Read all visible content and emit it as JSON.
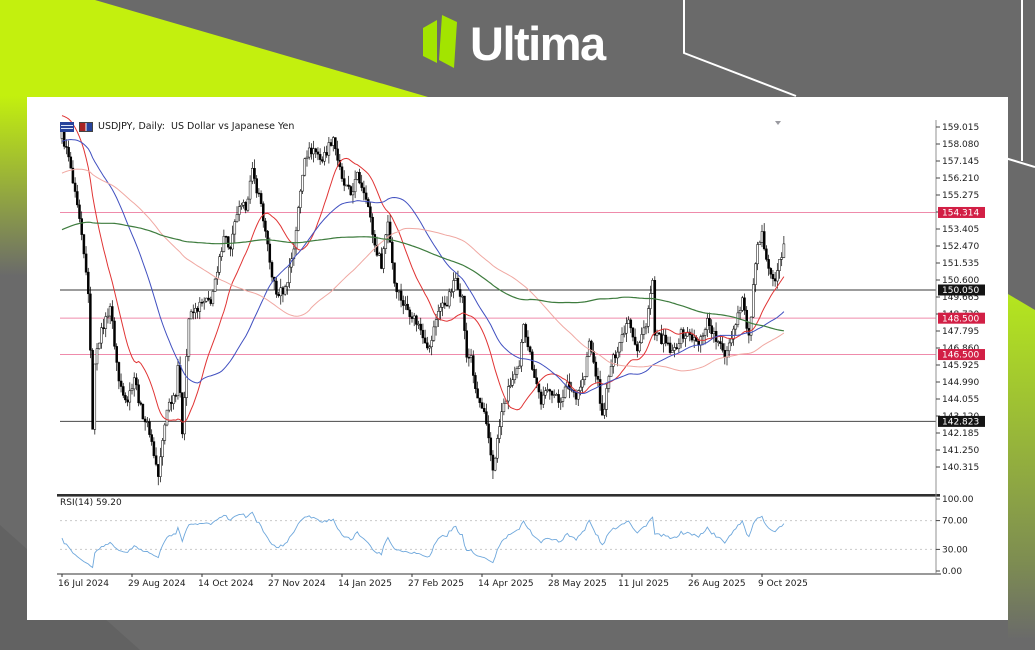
{
  "branding": {
    "logo_text": "Ultima",
    "logo_green": "#a3e400",
    "accent_lime": "#c3f00e",
    "background_gray": "#6a6a6a"
  },
  "window": {
    "title": "USDJPY, Daily:  US Dollar vs Japanese Yen"
  },
  "chart_data": {
    "type": "candlestick",
    "symbol": "USDJPY",
    "timeframe": "Daily",
    "description": "US Dollar vs Japanese Yen",
    "title": "USDJPY, Daily:  US Dollar vs Japanese Yen",
    "ylim": [
      138.9,
      159.4
    ],
    "grid": false,
    "total_days": 331,
    "x_tick_labels": [
      "16 Jul 2024",
      "29 Aug 2024",
      "14 Oct 2024",
      "27 Nov 2024",
      "14 Jan 2025",
      "27 Feb 2025",
      "14 Apr 2025",
      "28 May 2025",
      "11 Jul 2025",
      "26 Aug 2025",
      "9 Oct 2025"
    ],
    "x_tick_days": [
      0,
      32,
      64,
      96,
      128,
      160,
      192,
      224,
      256,
      288,
      320
    ],
    "y_ticks": [
      159.015,
      158.08,
      157.145,
      156.21,
      155.275,
      154.34,
      153.405,
      152.47,
      151.535,
      150.6,
      149.665,
      148.73,
      147.795,
      146.86,
      145.925,
      144.99,
      144.055,
      143.12,
      142.185,
      141.25,
      140.315
    ],
    "y_tick_labels": [
      "159.015",
      "158.080",
      "157.145",
      "156.210",
      "155.275",
      "154.340",
      "153.405",
      "152.470",
      "151.535",
      "150.600",
      "149.665",
      "148.730",
      "147.795",
      "146.860",
      "145.925",
      "144.990",
      "144.055",
      "143.120",
      "142.185",
      "141.250",
      "140.315"
    ],
    "price_path": [
      [
        0,
        158.6
      ],
      [
        3,
        157.3
      ],
      [
        8,
        153.8
      ],
      [
        12,
        150.0
      ],
      [
        13,
        146.5
      ],
      [
        14,
        142.6
      ],
      [
        15,
        145.8
      ],
      [
        16,
        147.0
      ],
      [
        22,
        149.2
      ],
      [
        26,
        145.0
      ],
      [
        30,
        144.0
      ],
      [
        33,
        145.3
      ],
      [
        36,
        143.5
      ],
      [
        40,
        142.3
      ],
      [
        44,
        139.8
      ],
      [
        48,
        143.6
      ],
      [
        52,
        144.5
      ],
      [
        53,
        146.0
      ],
      [
        55,
        142.3
      ],
      [
        58,
        148.5
      ],
      [
        63,
        149.2
      ],
      [
        68,
        149.5
      ],
      [
        71,
        150.9
      ],
      [
        74,
        153.2
      ],
      [
        77,
        152.2
      ],
      [
        80,
        154.3
      ],
      [
        84,
        154.7
      ],
      [
        87,
        156.5
      ],
      [
        91,
        154.8
      ],
      [
        95,
        151.5
      ],
      [
        98,
        149.8
      ],
      [
        102,
        150.1
      ],
      [
        106,
        152.4
      ],
      [
        111,
        157.5
      ],
      [
        115,
        157.8
      ],
      [
        119,
        157.2
      ],
      [
        124,
        158.5
      ],
      [
        128,
        156.0
      ],
      [
        132,
        155.3
      ],
      [
        135,
        156.3
      ],
      [
        139,
        155.3
      ],
      [
        143,
        152.5
      ],
      [
        146,
        151.5
      ],
      [
        149,
        153.9
      ],
      [
        152,
        150.5
      ],
      [
        156,
        149.3
      ],
      [
        160,
        148.7
      ],
      [
        164,
        147.9
      ],
      [
        168,
        146.8
      ],
      [
        172,
        149.0
      ],
      [
        176,
        149.4
      ],
      [
        180,
        150.7
      ],
      [
        183,
        149.6
      ],
      [
        185,
        146.2
      ],
      [
        187,
        146.5
      ],
      [
        189,
        144.4
      ],
      [
        193,
        143.2
      ],
      [
        197,
        140.2
      ],
      [
        201,
        143.3
      ],
      [
        205,
        144.9
      ],
      [
        209,
        145.7
      ],
      [
        211,
        148.3
      ],
      [
        215,
        145.9
      ],
      [
        219,
        143.9
      ],
      [
        223,
        144.7
      ],
      [
        227,
        143.9
      ],
      [
        231,
        144.8
      ],
      [
        235,
        144.3
      ],
      [
        239,
        145.3
      ],
      [
        241,
        147.2
      ],
      [
        245,
        144.9
      ],
      [
        247,
        143.0
      ],
      [
        251,
        145.9
      ],
      [
        255,
        147.2
      ],
      [
        259,
        148.6
      ],
      [
        263,
        146.7
      ],
      [
        267,
        148.3
      ],
      [
        270,
        150.5
      ],
      [
        271,
        147.5
      ],
      [
        275,
        147.3
      ],
      [
        279,
        146.5
      ],
      [
        283,
        147.6
      ],
      [
        287,
        147.6
      ],
      [
        291,
        147.0
      ],
      [
        295,
        148.4
      ],
      [
        299,
        147.3
      ],
      [
        303,
        146.5
      ],
      [
        307,
        147.9
      ],
      [
        311,
        149.6
      ],
      [
        314,
        147.3
      ],
      [
        316,
        150.2
      ],
      [
        318,
        152.3
      ],
      [
        320,
        153.0
      ],
      [
        322,
        152.0
      ],
      [
        324,
        151.0
      ],
      [
        326,
        150.4
      ],
      [
        328,
        151.7
      ],
      [
        330,
        152.4
      ]
    ],
    "prehistory_path": [
      [
        -200,
        147.5
      ],
      [
        -160,
        149.5
      ],
      [
        -120,
        152.0
      ],
      [
        -80,
        154.5
      ],
      [
        -40,
        156.5
      ],
      [
        -15,
        159.5
      ],
      [
        -8,
        161.0
      ],
      [
        -3,
        159.0
      ],
      [
        -1,
        158.5
      ]
    ],
    "horizontal_lines": [
      {
        "price": 154.314,
        "label": "154.314",
        "line_color": "#ef8bab",
        "box_color": "#d21f45",
        "text_color": "#ffffff"
      },
      {
        "price": 150.05,
        "label": "150.050",
        "line_color": "#3a3a3a",
        "box_color": "#141414",
        "text_color": "#ffffff"
      },
      {
        "price": 148.5,
        "label": "148.500",
        "line_color": "#ef8bab",
        "box_color": "#d21f45",
        "text_color": "#ffffff"
      },
      {
        "price": 146.5,
        "label": "146.500",
        "line_color": "#ef8bab",
        "box_color": "#d21f45",
        "text_color": "#ffffff"
      },
      {
        "price": 142.823,
        "label": "142.823",
        "line_color": "#4a4a4a",
        "box_color": "#141414",
        "text_color": "#ffffff"
      }
    ],
    "moving_averages": [
      {
        "period": 21,
        "color": "#e03434"
      },
      {
        "period": 50,
        "color": "#4150c0"
      },
      {
        "period": 100,
        "color": "#f0a8a2"
      },
      {
        "period": 200,
        "color": "#3e7c3e"
      }
    ],
    "candle_colors": {
      "bull": "#ffffff",
      "bear": "#000000",
      "outline": "#000000"
    },
    "rsi": {
      "label": "RSI(14) 59.20",
      "period": 14,
      "last_value": 59.2,
      "levels": [
        70,
        30
      ],
      "y_ticks": [
        100.0,
        70.0,
        30.0,
        0.0
      ],
      "y_tick_labels": [
        "100.00",
        "70.00",
        "30.00",
        "0.00"
      ],
      "line_color": "#6fa8dc"
    }
  }
}
